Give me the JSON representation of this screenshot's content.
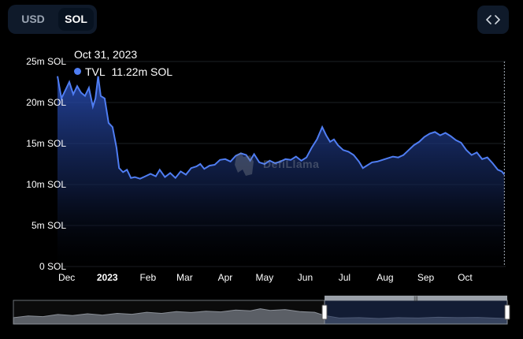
{
  "currency_toggle": {
    "options": [
      "USD",
      "SOL"
    ],
    "selected": "SOL"
  },
  "embed_button": {
    "icon": "code-brackets-icon"
  },
  "tooltip": {
    "date": "Oct 31, 2023",
    "series": "TVL",
    "value": "11.22m SOL",
    "color": "#4f7df2"
  },
  "watermark": {
    "text": "DefiLlama",
    "icon": "llama-logo-icon"
  },
  "chart_data": {
    "type": "area",
    "series_name": "TVL",
    "unit": "SOL",
    "y_ticks": [
      {
        "value": 25,
        "label": "25m SOL"
      },
      {
        "value": 20,
        "label": "20m SOL"
      },
      {
        "value": 15,
        "label": "15m SOL"
      },
      {
        "value": 10,
        "label": "10m SOL"
      },
      {
        "value": 5,
        "label": "5m SOL"
      },
      {
        "value": 0,
        "label": "0 SOL"
      }
    ],
    "ylim": [
      0,
      25
    ],
    "x_ticks": [
      {
        "date": "2022-12-01",
        "label": "Dec",
        "bold": false
      },
      {
        "date": "2023-01-01",
        "label": "2023",
        "bold": true
      },
      {
        "date": "2023-02-01",
        "label": "Feb",
        "bold": false
      },
      {
        "date": "2023-03-01",
        "label": "Mar",
        "bold": false
      },
      {
        "date": "2023-04-01",
        "label": "Apr",
        "bold": false
      },
      {
        "date": "2023-05-01",
        "label": "May",
        "bold": false
      },
      {
        "date": "2023-06-01",
        "label": "Jun",
        "bold": false
      },
      {
        "date": "2023-07-01",
        "label": "Jul",
        "bold": false
      },
      {
        "date": "2023-08-01",
        "label": "Aug",
        "bold": false
      },
      {
        "date": "2023-09-01",
        "label": "Sep",
        "bold": false
      },
      {
        "date": "2023-10-01",
        "label": "Oct",
        "bold": false
      }
    ],
    "xlim": [
      "2022-11-24",
      "2023-11-01"
    ],
    "hover_date": "2023-10-31",
    "color": "#4f7df2",
    "points": [
      [
        "2022-11-24",
        23.2
      ],
      [
        "2022-11-27",
        20.5
      ],
      [
        "2022-11-30",
        21.5
      ],
      [
        "2022-12-03",
        22.5
      ],
      [
        "2022-12-06",
        21.0
      ],
      [
        "2022-12-09",
        22.0
      ],
      [
        "2022-12-12",
        21.2
      ],
      [
        "2022-12-15",
        20.8
      ],
      [
        "2022-12-18",
        21.8
      ],
      [
        "2022-12-21",
        19.5
      ],
      [
        "2022-12-23",
        20.5
      ],
      [
        "2022-12-25",
        23.2
      ],
      [
        "2022-12-27",
        20.8
      ],
      [
        "2022-12-30",
        20.5
      ],
      [
        "2023-01-02",
        17.5
      ],
      [
        "2023-01-05",
        17.0
      ],
      [
        "2023-01-08",
        14.5
      ],
      [
        "2023-01-10",
        12.0
      ],
      [
        "2023-01-13",
        11.5
      ],
      [
        "2023-01-16",
        11.8
      ],
      [
        "2023-01-19",
        10.8
      ],
      [
        "2023-01-22",
        10.9
      ],
      [
        "2023-01-26",
        10.7
      ],
      [
        "2023-01-30",
        11.0
      ],
      [
        "2023-02-03",
        11.3
      ],
      [
        "2023-02-07",
        11.0
      ],
      [
        "2023-02-10",
        11.8
      ],
      [
        "2023-02-14",
        10.9
      ],
      [
        "2023-02-18",
        11.4
      ],
      [
        "2023-02-22",
        10.8
      ],
      [
        "2023-02-26",
        11.6
      ],
      [
        "2023-03-02",
        11.2
      ],
      [
        "2023-03-06",
        12.0
      ],
      [
        "2023-03-10",
        12.2
      ],
      [
        "2023-03-13",
        12.5
      ],
      [
        "2023-03-16",
        11.9
      ],
      [
        "2023-03-20",
        12.3
      ],
      [
        "2023-03-24",
        12.4
      ],
      [
        "2023-03-28",
        13.0
      ],
      [
        "2023-04-01",
        13.1
      ],
      [
        "2023-04-05",
        12.8
      ],
      [
        "2023-04-09",
        13.5
      ],
      [
        "2023-04-13",
        13.8
      ],
      [
        "2023-04-17",
        13.6
      ],
      [
        "2023-04-20",
        12.9
      ],
      [
        "2023-04-23",
        13.7
      ],
      [
        "2023-04-27",
        12.7
      ],
      [
        "2023-05-01",
        12.5
      ],
      [
        "2023-05-05",
        12.9
      ],
      [
        "2023-05-09",
        12.6
      ],
      [
        "2023-05-13",
        12.8
      ],
      [
        "2023-05-17",
        13.1
      ],
      [
        "2023-05-21",
        13.0
      ],
      [
        "2023-05-25",
        13.4
      ],
      [
        "2023-05-29",
        12.9
      ],
      [
        "2023-06-02",
        13.3
      ],
      [
        "2023-06-06",
        14.5
      ],
      [
        "2023-06-10",
        15.5
      ],
      [
        "2023-06-14",
        17.0
      ],
      [
        "2023-06-17",
        16.0
      ],
      [
        "2023-06-20",
        15.2
      ],
      [
        "2023-06-23",
        15.5
      ],
      [
        "2023-06-26",
        14.8
      ],
      [
        "2023-06-30",
        14.2
      ],
      [
        "2023-07-04",
        14.0
      ],
      [
        "2023-07-08",
        13.6
      ],
      [
        "2023-07-12",
        12.8
      ],
      [
        "2023-07-15",
        12.0
      ],
      [
        "2023-07-18",
        12.3
      ],
      [
        "2023-07-22",
        12.7
      ],
      [
        "2023-07-26",
        12.8
      ],
      [
        "2023-07-30",
        13.0
      ],
      [
        "2023-08-03",
        13.2
      ],
      [
        "2023-08-07",
        13.4
      ],
      [
        "2023-08-11",
        13.3
      ],
      [
        "2023-08-15",
        13.6
      ],
      [
        "2023-08-19",
        14.2
      ],
      [
        "2023-08-23",
        14.8
      ],
      [
        "2023-08-27",
        15.2
      ],
      [
        "2023-08-31",
        15.8
      ],
      [
        "2023-09-04",
        16.2
      ],
      [
        "2023-09-08",
        16.4
      ],
      [
        "2023-09-12",
        16.0
      ],
      [
        "2023-09-16",
        16.3
      ],
      [
        "2023-09-20",
        15.9
      ],
      [
        "2023-09-24",
        15.4
      ],
      [
        "2023-09-28",
        15.1
      ],
      [
        "2023-10-02",
        14.2
      ],
      [
        "2023-10-06",
        13.6
      ],
      [
        "2023-10-10",
        13.9
      ],
      [
        "2023-10-14",
        13.1
      ],
      [
        "2023-10-18",
        13.3
      ],
      [
        "2023-10-22",
        12.6
      ],
      [
        "2023-10-26",
        11.8
      ],
      [
        "2023-10-29",
        11.6
      ],
      [
        "2023-10-31",
        11.22
      ]
    ]
  },
  "overview": {
    "selected_range_fraction": [
      0.63,
      1.0
    ]
  }
}
